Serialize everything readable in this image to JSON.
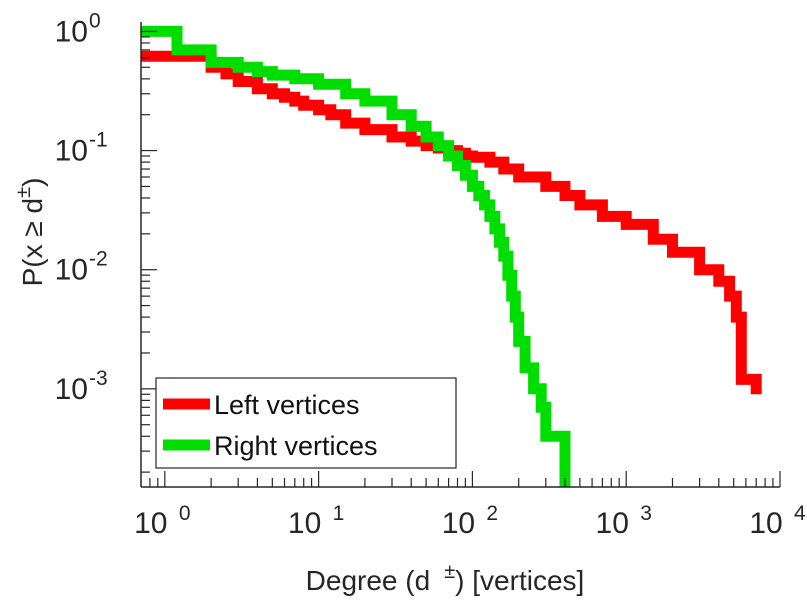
{
  "chart_data": {
    "type": "line",
    "xscale": "log",
    "yscale": "log",
    "xlim": [
      0.7,
      10000
    ],
    "ylim": [
      0.00015,
      1.2
    ],
    "grid": false,
    "legend_position": "bottom-left",
    "xlabel": {
      "main": "Degree (d",
      "sup": "±",
      "rest": ") [vertices]"
    },
    "ylabel": {
      "main": "P(x ≥ d",
      "sup": "±",
      "rest": ")"
    },
    "x_ticks": [
      {
        "value": 1,
        "base": "10",
        "exp": "0"
      },
      {
        "value": 10,
        "base": "10",
        "exp": "1"
      },
      {
        "value": 100,
        "base": "10",
        "exp": "2"
      },
      {
        "value": 1000,
        "base": "10",
        "exp": "3"
      },
      {
        "value": 10000,
        "base": "10",
        "exp": "4"
      }
    ],
    "y_ticks": [
      {
        "value": 1,
        "base": "10",
        "exp": "0"
      },
      {
        "value": 0.1,
        "base": "10",
        "exp": "-1"
      },
      {
        "value": 0.01,
        "base": "10",
        "exp": "-2"
      },
      {
        "value": 0.001,
        "base": "10",
        "exp": "-3"
      }
    ],
    "series": [
      {
        "name": "Left vertices",
        "color": "#ff0000",
        "x": [
          0.7,
          1.3,
          2,
          2.5,
          3,
          4,
          5,
          6,
          7,
          8,
          10,
          12,
          15,
          20,
          30,
          40,
          50,
          60,
          70,
          80,
          90,
          100,
          130,
          160,
          200,
          300,
          400,
          500,
          700,
          1000,
          1500,
          2000,
          3000,
          4000,
          4700,
          5200,
          5600,
          7000
        ],
        "y": [
          0.62,
          0.62,
          0.5,
          0.44,
          0.38,
          0.33,
          0.3,
          0.28,
          0.26,
          0.24,
          0.22,
          0.2,
          0.17,
          0.15,
          0.13,
          0.12,
          0.11,
          0.105,
          0.1,
          0.095,
          0.09,
          0.088,
          0.08,
          0.07,
          0.06,
          0.05,
          0.042,
          0.035,
          0.028,
          0.024,
          0.018,
          0.014,
          0.01,
          0.008,
          0.006,
          0.004,
          0.0012,
          0.0009
        ]
      },
      {
        "name": "Right vertices",
        "color": "#00dd00",
        "x": [
          0.7,
          1.2,
          2,
          3,
          4,
          5,
          7,
          10,
          15,
          20,
          30,
          40,
          50,
          60,
          70,
          80,
          90,
          100,
          110,
          120,
          130,
          140,
          150,
          160,
          170,
          180,
          190,
          200,
          220,
          250,
          280,
          300,
          400
        ],
        "y": [
          1.0,
          0.7,
          0.55,
          0.5,
          0.46,
          0.43,
          0.4,
          0.36,
          0.3,
          0.26,
          0.2,
          0.16,
          0.13,
          0.11,
          0.09,
          0.075,
          0.062,
          0.05,
          0.042,
          0.035,
          0.028,
          0.022,
          0.017,
          0.013,
          0.009,
          0.006,
          0.004,
          0.0025,
          0.0015,
          0.001,
          0.0007,
          0.0004,
          0.00015
        ]
      }
    ]
  }
}
